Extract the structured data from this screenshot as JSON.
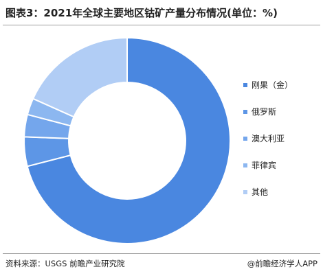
{
  "title": "图表3：2021年全球主要地区钴矿产量分布情况(单位：%)",
  "source": "资料来源：USGS 前瞻产业研究院",
  "credit": "@前瞻经济学人APP",
  "chart_data": {
    "type": "donut",
    "title": "图表3：2021年全球主要地区钴矿产量分布情况(单位：%)",
    "categories": [
      "刚果（金）",
      "俄罗斯",
      "澳大利亚",
      "菲律宾",
      "其他"
    ],
    "values": [
      71,
      4.6,
      3.5,
      2.6,
      18.3
    ],
    "colors": [
      "#4a87e0",
      "#5d96e6",
      "#74a6ec",
      "#8cb7f0",
      "#b1cdf5"
    ],
    "legend_position": "right"
  }
}
